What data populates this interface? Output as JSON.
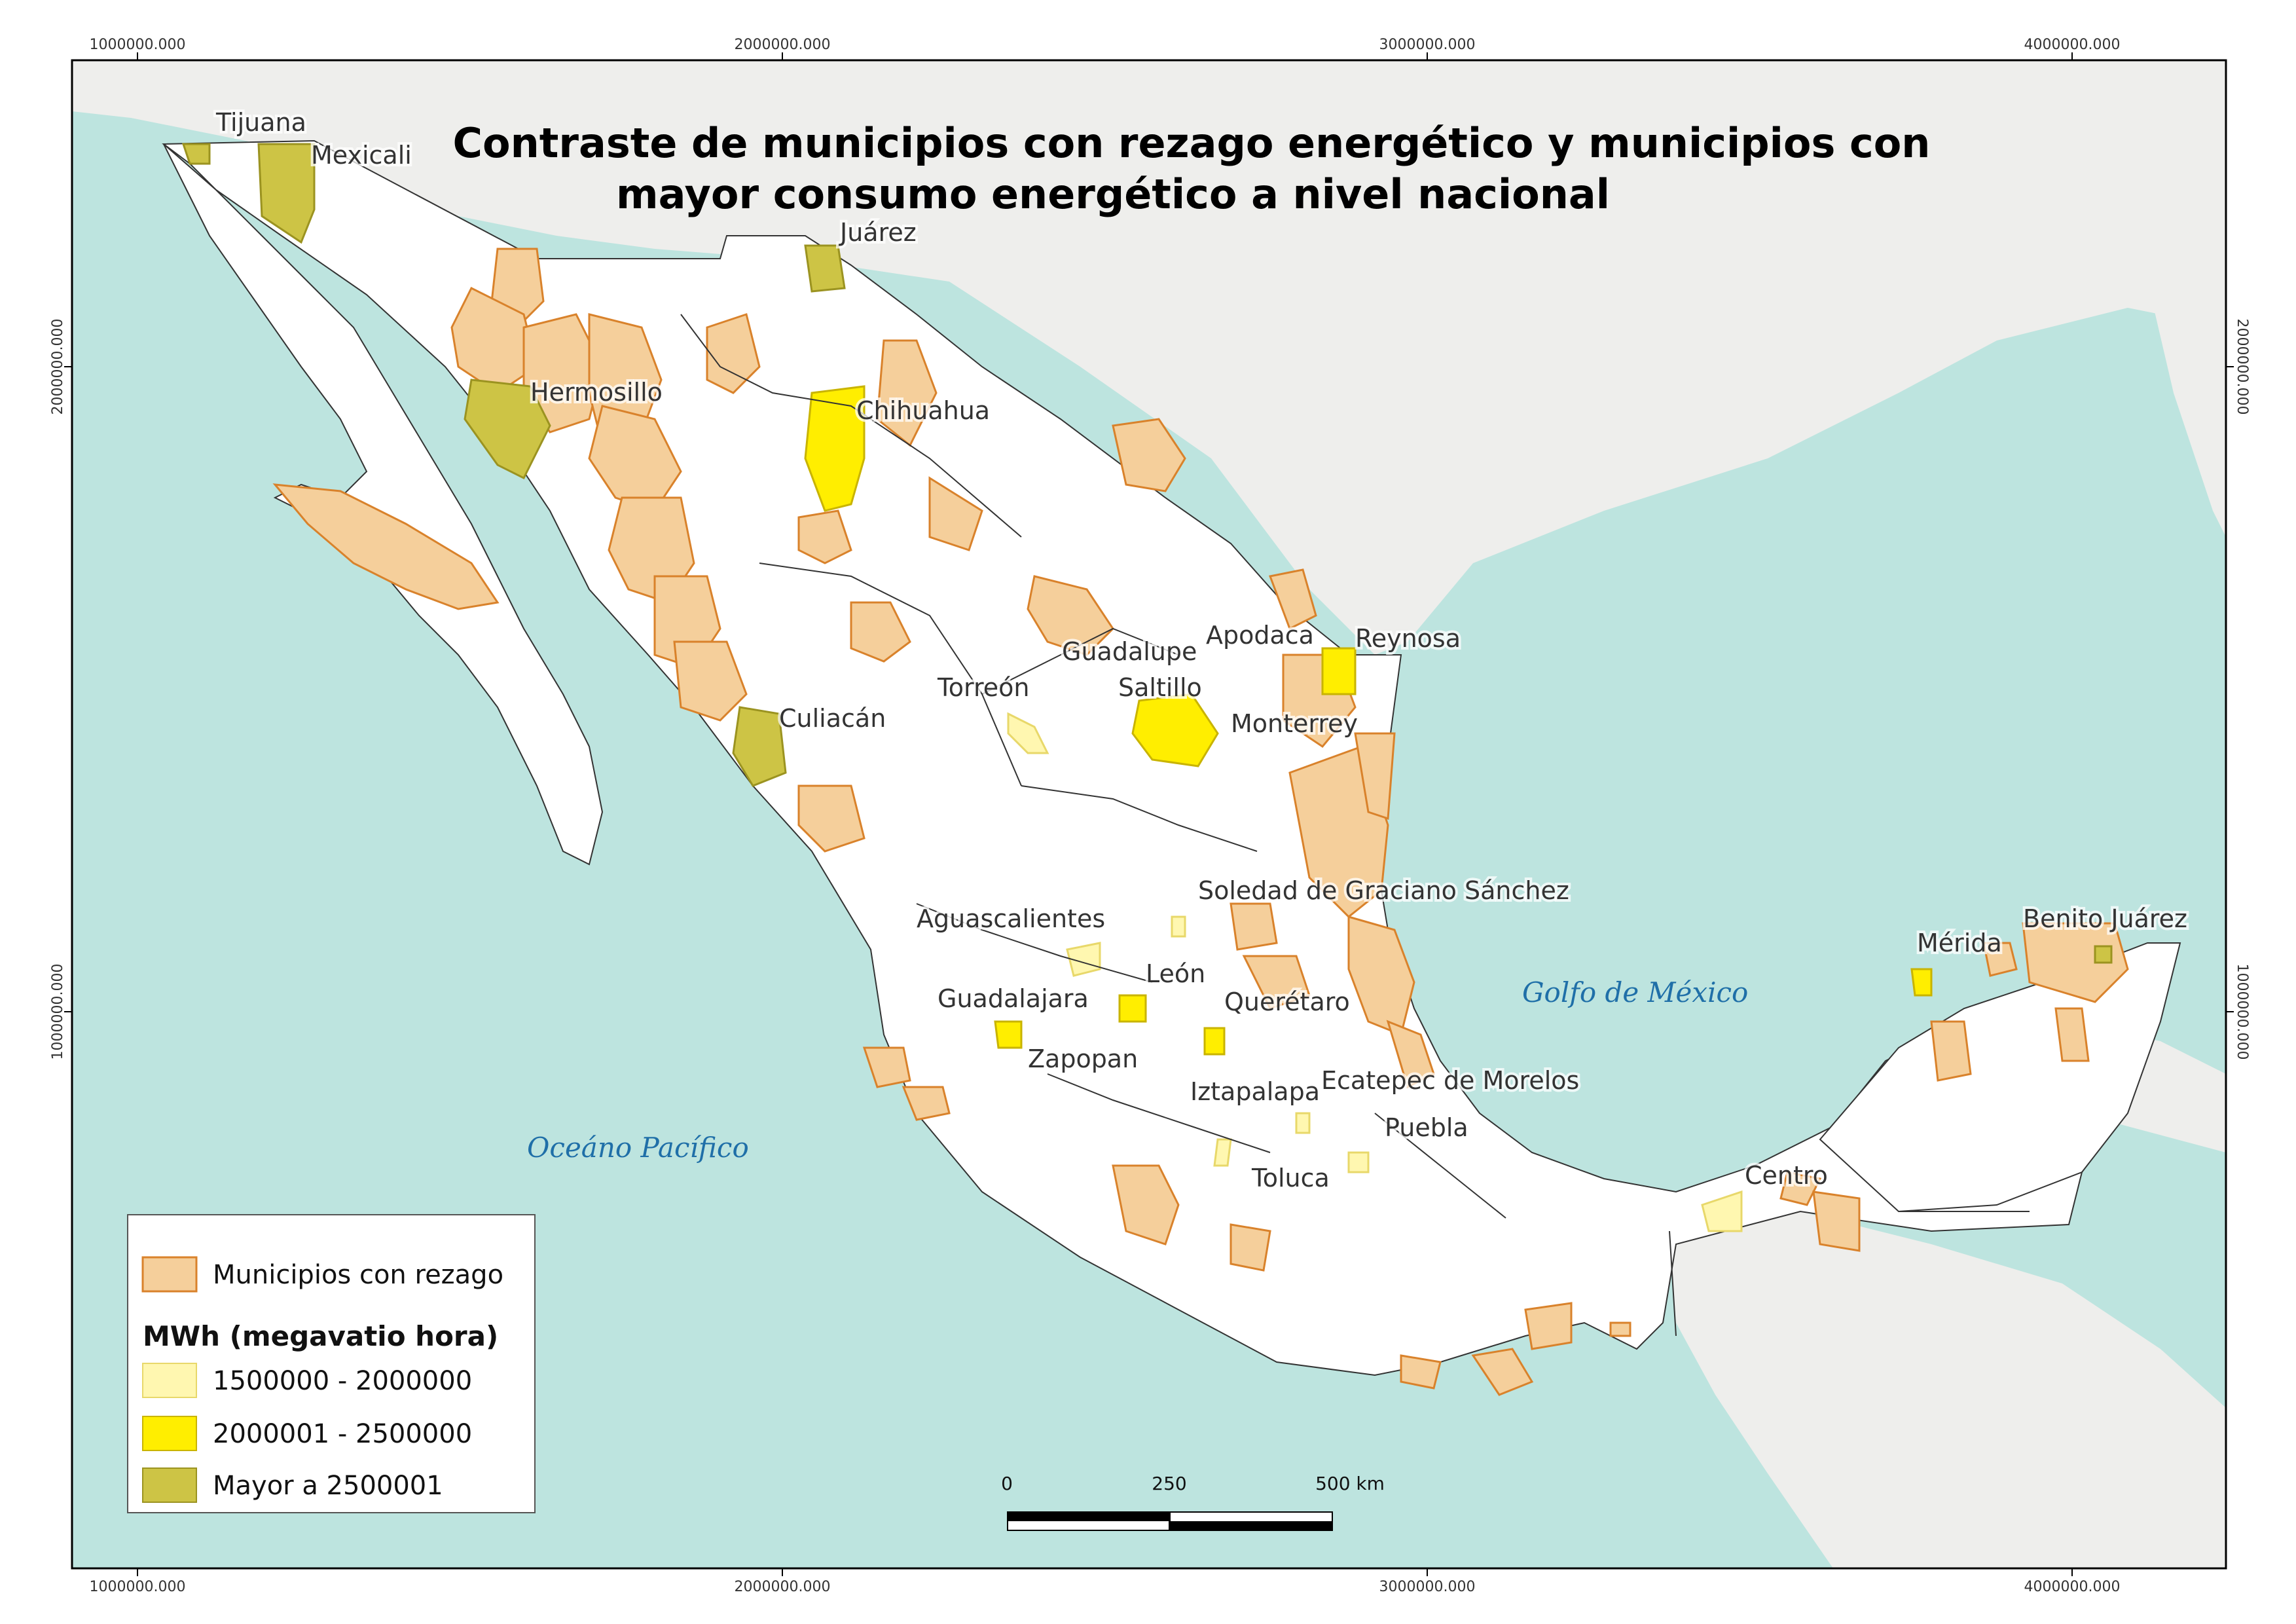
{
  "title": {
    "line1": "Contraste de municipios con rezago energético y municipios con",
    "line2": "mayor consumo energético a nivel nacional"
  },
  "coordinates": {
    "top": [
      "1000000.000",
      "2000000.000",
      "3000000.000",
      "4000000.000"
    ],
    "bottom": [
      "1000000.000",
      "2000000.000",
      "3000000.000",
      "4000000.000"
    ],
    "left": [
      "2000000.000",
      "1000000.000"
    ],
    "right": [
      "2000000.000",
      "1000000.000"
    ]
  },
  "water_labels": {
    "pacific": "Oceáno Pacífico",
    "gulf": "Golfo de México"
  },
  "cities": [
    "Tijuana",
    "Mexicali",
    "Juárez",
    "Hermosillo",
    "Chihuahua",
    "Culiacán",
    "Torreón",
    "Guadalupe",
    "Apodaca",
    "Reynosa",
    "Saltillo",
    "Monterrey",
    "Soledad de Graciano Sánchez",
    "Aguascalientes",
    "León",
    "Guadalajara",
    "Querétaro",
    "Zapopan",
    "Iztapalapa",
    "Ecatepec de Morelos",
    "Puebla",
    "Toluca",
    "Centro",
    "Mérida",
    "Benito Juárez"
  ],
  "legend": {
    "rezago_label": "Municipios con rezago",
    "heading": "MWh (megavatio hora)",
    "classes": [
      {
        "label": "1500000 - 2000000",
        "color": "#fff7b0"
      },
      {
        "label": "2000001 - 2500000",
        "color": "#ffee00"
      },
      {
        "label": "Mayor a 2500001",
        "color": "#cdc445"
      }
    ],
    "rezago_color": "#f5cf9b",
    "rezago_stroke": "#d9822b"
  },
  "scale_bar": {
    "labels": [
      "0",
      "250",
      "500 km"
    ]
  },
  "colors": {
    "sea": "#bde4df",
    "land": "#f2f2f0",
    "mexico": "#ffffff",
    "border": "#333333"
  }
}
